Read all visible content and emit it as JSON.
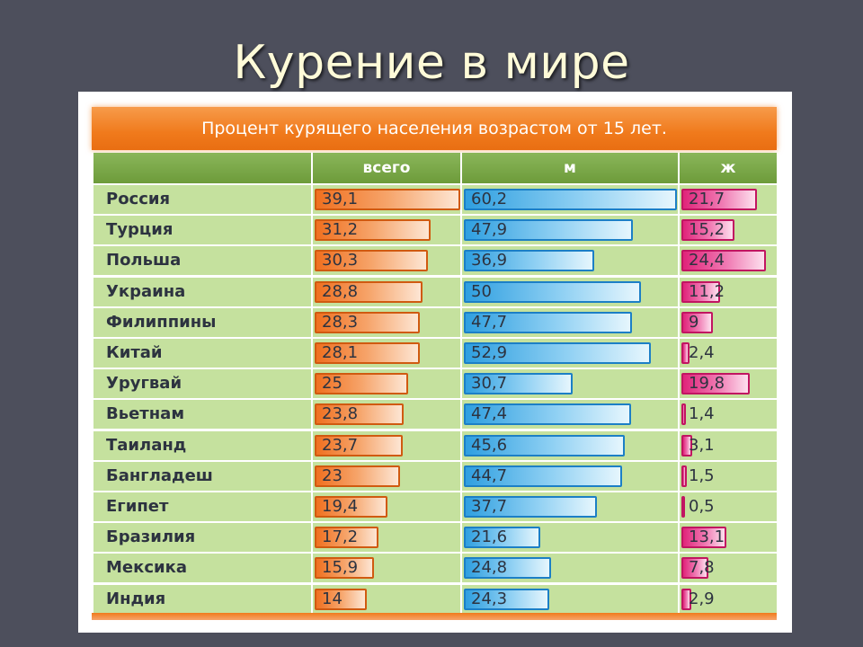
{
  "slide": {
    "title": "Курение в мире"
  },
  "chart_data": {
    "type": "bar",
    "title": "Процент курящего населения возрастом от 15 лет.",
    "column_headers": [
      "всего",
      "м",
      "ж"
    ],
    "categories": [
      "Россия",
      "Турция",
      "Польша",
      "Украина",
      "Филиппины",
      "Китай",
      "Уругвай",
      "Вьетнам",
      "Таиланд",
      "Бангладеш",
      "Египет",
      "Бразилия",
      "Мексика",
      "Индия"
    ],
    "series": [
      {
        "name": "всего",
        "color": "#f07020",
        "values": [
          39.1,
          31.2,
          30.3,
          28.8,
          28.3,
          28.1,
          25,
          23.8,
          23.7,
          23,
          19.4,
          17.2,
          15.9,
          14
        ],
        "labels": [
          "39,1",
          "31,2",
          "30,3",
          "28,8",
          "28,3",
          "28,1",
          "25",
          "23,8",
          "23,7",
          "23",
          "19,4",
          "17,2",
          "15,9",
          "14"
        ]
      },
      {
        "name": "м",
        "color": "#2f9fe0",
        "values": [
          60.2,
          47.9,
          36.9,
          50,
          47.7,
          52.9,
          30.7,
          47.4,
          45.6,
          44.7,
          37.7,
          21.6,
          24.8,
          24.3
        ],
        "labels": [
          "60,2",
          "47,9",
          "36,9",
          "50",
          "47,7",
          "52,9",
          "30,7",
          "47,4",
          "45,6",
          "44,7",
          "37,7",
          "21,6",
          "24,8",
          "24,3"
        ]
      },
      {
        "name": "ж",
        "color": "#e0247a",
        "values": [
          21.7,
          15.2,
          24.4,
          11.2,
          9,
          2.4,
          19.8,
          1.4,
          3.1,
          1.5,
          0.5,
          13.1,
          7.8,
          2.9
        ],
        "labels": [
          "21,7",
          "15,2",
          "24,4",
          "11,2",
          "9",
          "2,4",
          "19,8",
          "1,4",
          "3,1",
          "1,5",
          "0,5",
          "13,1",
          "7,8",
          "2,9"
        ]
      }
    ]
  }
}
